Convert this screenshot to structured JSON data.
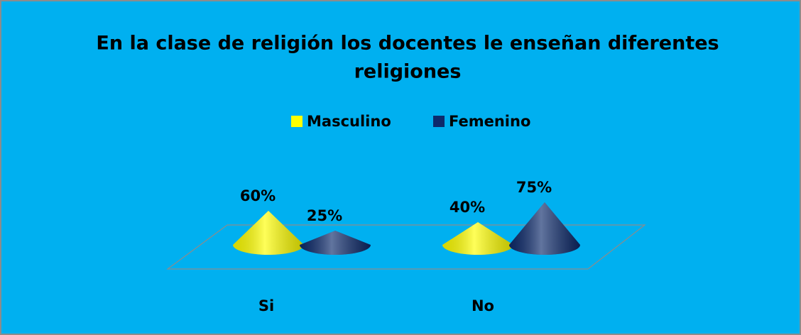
{
  "chart_data": {
    "type": "cone",
    "title": [
      "En la clase de religión los docentes le enseñan diferentes",
      "religiones"
    ],
    "categories": [
      "Si",
      "No"
    ],
    "series": [
      {
        "name": "Masculino",
        "color": "#ffff00",
        "values": [
          60,
          40
        ],
        "value_labels": [
          "60%",
          "40%"
        ]
      },
      {
        "name": "Femenino",
        "color": "#0d2a6b",
        "values": [
          25,
          75
        ],
        "value_labels": [
          "25%",
          "75%"
        ]
      }
    ],
    "legend": "top"
  }
}
